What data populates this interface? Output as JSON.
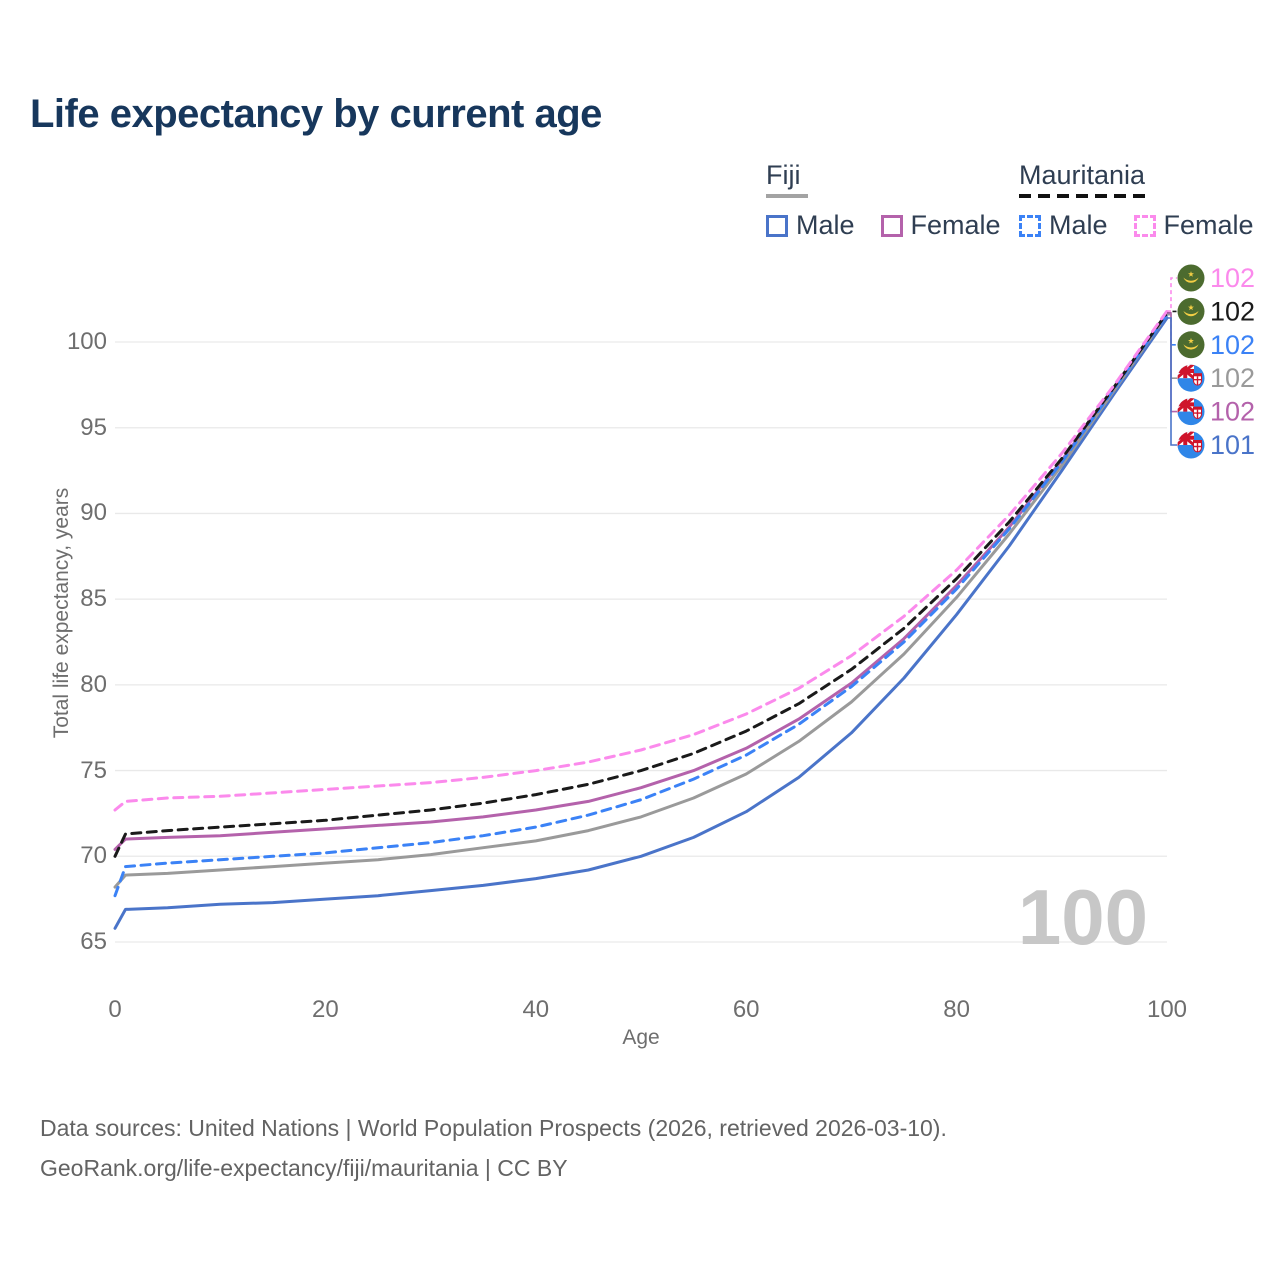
{
  "title": "Life expectancy by current age",
  "legend": {
    "groups": [
      {
        "label": "Fiji",
        "underline": {
          "color": "#a3a3a3",
          "dash": false
        },
        "items": [
          {
            "label": "Male",
            "color": "#4a74c9",
            "dash": false
          },
          {
            "label": "Female",
            "color": "#b462ab",
            "dash": false
          }
        ]
      },
      {
        "label": "Mauritania",
        "underline": {
          "color": "#111111",
          "dash": true
        },
        "items": [
          {
            "label": "Male",
            "color": "#3b82f6",
            "dash": true
          },
          {
            "label": "Female",
            "color": "#fb8aec",
            "dash": true
          }
        ]
      }
    ]
  },
  "chart_data": {
    "type": "line",
    "title": "Life expectancy by current age",
    "xlabel": "Age",
    "ylabel": "Total life expectancy, years",
    "x": [
      0,
      1,
      5,
      10,
      15,
      20,
      25,
      30,
      35,
      40,
      45,
      50,
      55,
      60,
      65,
      70,
      75,
      80,
      85,
      90,
      95,
      100
    ],
    "xticks": [
      0,
      20,
      40,
      60,
      80,
      100
    ],
    "yticks": [
      65,
      70,
      75,
      80,
      85,
      90,
      95,
      100
    ],
    "xlim": [
      0,
      100
    ],
    "ylim": [
      65,
      100
    ],
    "grid": "horizontal",
    "legend_position": "top-right",
    "watermark": "100",
    "series": [
      {
        "name": "Mauritania Female",
        "country": "Mauritania",
        "sex": "Female",
        "flag": "mauritania",
        "color": "#fb8aec",
        "dash": true,
        "end_label": "102",
        "values": [
          72.7,
          73.2,
          73.4,
          73.5,
          73.7,
          73.9,
          74.1,
          74.3,
          74.6,
          75.0,
          75.5,
          76.2,
          77.1,
          78.3,
          79.8,
          81.7,
          84.0,
          86.7,
          89.9,
          93.5,
          97.5,
          101.8
        ]
      },
      {
        "name": "Mauritania Both sexes",
        "country": "Mauritania",
        "sex": "Both",
        "flag": "mauritania",
        "color": "#1a1a1a",
        "dash": true,
        "end_label": "102",
        "values": [
          70.0,
          71.3,
          71.5,
          71.7,
          71.9,
          72.1,
          72.4,
          72.7,
          73.1,
          73.6,
          74.2,
          75.0,
          76.0,
          77.3,
          78.9,
          80.9,
          83.3,
          86.2,
          89.5,
          93.2,
          97.4,
          101.7
        ]
      },
      {
        "name": "Mauritania Male",
        "country": "Mauritania",
        "sex": "Male",
        "flag": "mauritania",
        "color": "#3b82f6",
        "dash": true,
        "end_label": "102",
        "values": [
          67.7,
          69.4,
          69.6,
          69.8,
          70.0,
          70.2,
          70.5,
          70.8,
          71.2,
          71.7,
          72.4,
          73.3,
          74.5,
          75.9,
          77.7,
          79.9,
          82.5,
          85.6,
          89.1,
          93.0,
          97.3,
          101.6
        ]
      },
      {
        "name": "Fiji Both sexes",
        "country": "Fiji",
        "sex": "Both",
        "flag": "fiji",
        "color": "#9a9a9a",
        "dash": false,
        "end_label": "102",
        "values": [
          68.2,
          68.9,
          69.0,
          69.2,
          69.4,
          69.6,
          69.8,
          70.1,
          70.5,
          70.9,
          71.5,
          72.3,
          73.4,
          74.8,
          76.7,
          79.0,
          81.8,
          85.1,
          88.8,
          92.8,
          97.2,
          101.6
        ]
      },
      {
        "name": "Fiji Female",
        "country": "Fiji",
        "sex": "Female",
        "flag": "fiji",
        "color": "#b462ab",
        "dash": false,
        "end_label": "102",
        "values": [
          70.4,
          71.0,
          71.1,
          71.2,
          71.4,
          71.6,
          71.8,
          72.0,
          72.3,
          72.7,
          73.2,
          74.0,
          75.0,
          76.3,
          78.0,
          80.1,
          82.7,
          85.8,
          89.2,
          93.1,
          97.3,
          101.7
        ]
      },
      {
        "name": "Fiji Male",
        "country": "Fiji",
        "sex": "Male",
        "flag": "fiji",
        "color": "#4a74c9",
        "dash": false,
        "end_label": "101",
        "values": [
          65.8,
          66.9,
          67.0,
          67.2,
          67.3,
          67.5,
          67.7,
          68.0,
          68.3,
          68.7,
          69.2,
          70.0,
          71.1,
          72.6,
          74.6,
          77.2,
          80.4,
          84.1,
          88.1,
          92.5,
          97.0,
          101.4
        ]
      }
    ]
  },
  "footer": {
    "line1": "Data sources: United Nations | World Population Prospects (2026, retrieved 2026-03-10).",
    "line2": "GeoRank.org/life-expectancy/fiji/mauritania | CC BY"
  }
}
